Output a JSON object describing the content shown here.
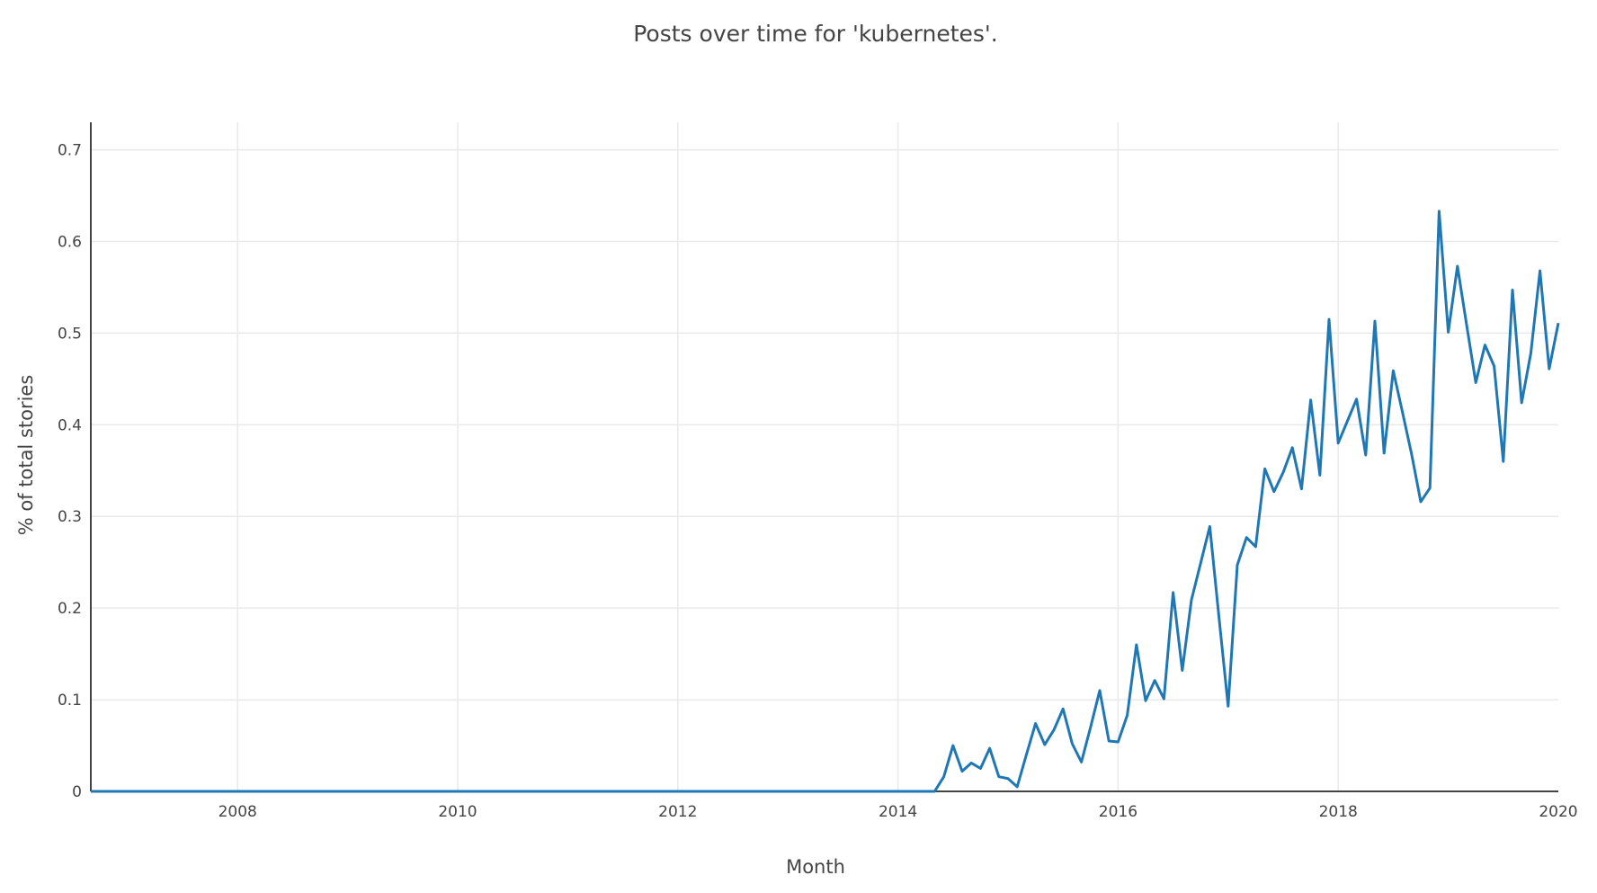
{
  "chart_data": {
    "type": "line",
    "title": "Posts over time for 'kubernetes'.",
    "xlabel": "Month",
    "ylabel": "% of total stories",
    "xlim": [
      "2006-09",
      "2020-01"
    ],
    "ylim": [
      0,
      0.73
    ],
    "x_ticks": [
      "2008",
      "2010",
      "2012",
      "2014",
      "2016",
      "2018",
      "2020"
    ],
    "y_ticks": [
      "0",
      "0.1",
      "0.2",
      "0.3",
      "0.4",
      "0.5",
      "0.6",
      "0.7"
    ],
    "grid": true,
    "line_color": "#1f77b4",
    "series": [
      {
        "x": [
          "2006-09",
          "2014-05",
          "2014-06",
          "2014-07",
          "2014-08",
          "2014-09",
          "2014-10",
          "2014-11",
          "2014-12",
          "2015-01",
          "2015-02",
          "2015-03",
          "2015-04",
          "2015-05",
          "2015-06",
          "2015-07",
          "2015-08",
          "2015-09",
          "2015-10",
          "2015-11",
          "2015-12",
          "2016-01",
          "2016-02",
          "2016-03",
          "2016-04",
          "2016-05",
          "2016-06",
          "2016-07",
          "2016-08",
          "2016-09",
          "2016-10",
          "2016-11",
          "2016-12",
          "2017-01",
          "2017-02",
          "2017-03",
          "2017-04",
          "2017-05",
          "2017-06",
          "2017-07",
          "2017-08",
          "2017-09",
          "2017-10",
          "2017-11",
          "2017-12",
          "2018-01",
          "2018-02",
          "2018-03",
          "2018-04",
          "2018-05",
          "2018-06",
          "2018-07",
          "2018-08",
          "2018-09",
          "2018-10",
          "2018-11",
          "2018-12",
          "2019-01",
          "2019-02",
          "2019-03",
          "2019-04",
          "2019-05",
          "2019-06",
          "2019-07",
          "2019-08",
          "2019-09",
          "2019-10",
          "2019-11",
          "2019-12",
          "2020-01"
        ],
        "y": [
          0,
          0,
          0.016,
          0.05,
          0.022,
          0.031,
          0.025,
          0.047,
          0.016,
          0.014,
          0.005,
          0.04,
          0.074,
          0.051,
          0.067,
          0.09,
          0.052,
          0.032,
          0.07,
          0.11,
          0.055,
          0.054,
          0.083,
          0.16,
          0.099,
          0.121,
          0.101,
          0.217,
          0.132,
          0.209,
          0.249,
          0.289,
          0.19,
          0.093,
          0.247,
          0.277,
          0.267,
          0.352,
          0.327,
          0.348,
          0.375,
          0.33,
          0.427,
          0.345,
          0.515,
          0.38,
          0.404,
          0.428,
          0.367,
          0.513,
          0.369,
          0.459,
          0.414,
          0.368,
          0.316,
          0.331,
          0.633,
          0.501,
          0.573,
          0.509,
          0.446,
          0.487,
          0.464,
          0.36,
          0.547,
          0.424,
          0.478,
          0.568,
          0.461,
          0.511
        ]
      }
    ]
  }
}
